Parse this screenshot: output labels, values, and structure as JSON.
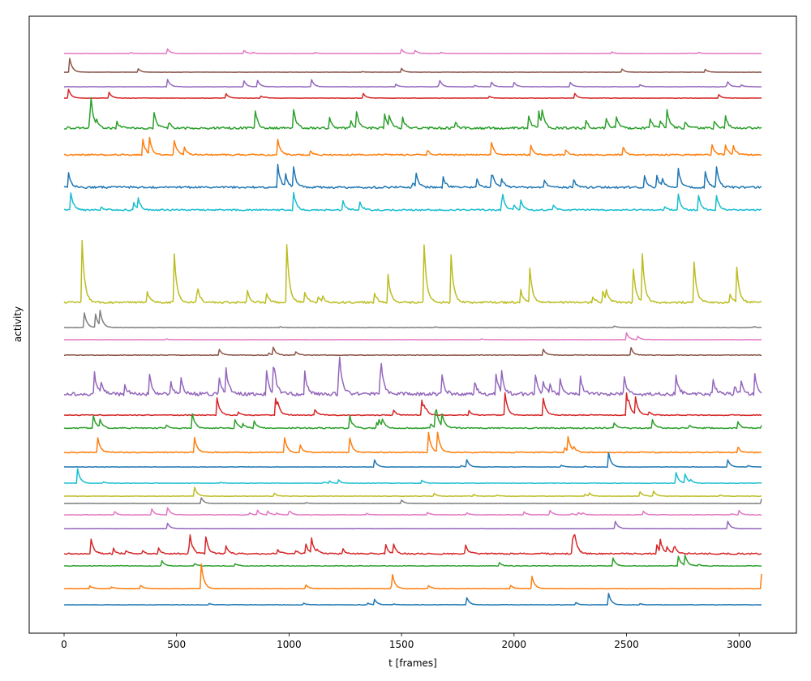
{
  "chart_data": {
    "type": "line",
    "xlabel": "t [frames]",
    "ylabel": "activity",
    "xlim": [
      -155,
      3255
    ],
    "n_frames": 3100,
    "x_ticks": [
      0,
      500,
      1000,
      1500,
      2000,
      2500,
      3000
    ],
    "y_ticks": [],
    "grid": false,
    "legend": "none",
    "traces": [
      {
        "color": "#e377c2",
        "amp": 0.35,
        "noise": 0.55,
        "spikes": [
          [
            460,
            2
          ],
          [
            800,
            1.3
          ],
          [
            1500,
            1.8
          ],
          [
            1560,
            1.4
          ]
        ]
      },
      {
        "color": "#8c564b",
        "amp": 0.35,
        "noise": 0.5,
        "spikes": [
          [
            25,
            6
          ],
          [
            330,
            1.5
          ],
          [
            1500,
            1.6
          ],
          [
            2480,
            1.4
          ],
          [
            2850,
            1.2
          ]
        ]
      },
      {
        "color": "#9467bd",
        "amp": 0.45,
        "noise": 0.7,
        "spikes": [
          [
            460,
            2.5
          ],
          [
            800,
            2
          ],
          [
            860,
            2.2
          ],
          [
            1100,
            2.4
          ],
          [
            1670,
            1.8
          ],
          [
            1900,
            1.5
          ],
          [
            2000,
            1.5
          ],
          [
            2250,
            1.5
          ],
          [
            2950,
            1.3
          ]
        ]
      },
      {
        "color": "#d62728",
        "amp": 0.45,
        "noise": 0.6,
        "spikes": [
          [
            20,
            3
          ],
          [
            200,
            2
          ],
          [
            720,
            1.5
          ],
          [
            1330,
            1.6
          ],
          [
            2270,
            1.6
          ],
          [
            2910,
            1.2
          ]
        ]
      },
      {
        "color": "#2ca02c",
        "amp": 0.9,
        "noise": 2.2,
        "spikes": [
          [
            120,
            3.5
          ],
          [
            400,
            2.8
          ],
          [
            850,
            3
          ],
          [
            1020,
            3.2
          ],
          [
            1300,
            2.8
          ],
          [
            2680,
            3
          ]
        ]
      },
      {
        "color": "#ff7f0e",
        "amp": 0.8,
        "noise": 1.6,
        "spikes": [
          [
            350,
            3
          ],
          [
            380,
            3
          ],
          [
            490,
            2.8
          ],
          [
            950,
            3
          ],
          [
            1900,
            2.5
          ],
          [
            2880,
            2
          ]
        ]
      },
      {
        "color": "#1f77b4",
        "amp": 0.85,
        "noise": 2.0,
        "spikes": [
          [
            20,
            2.5
          ],
          [
            950,
            4
          ],
          [
            1020,
            3.5
          ],
          [
            1900,
            2
          ],
          [
            2730,
            3.5
          ],
          [
            2850,
            3
          ],
          [
            2900,
            3.5
          ]
        ]
      },
      {
        "color": "#17becf",
        "amp": 0.8,
        "noise": 1.6,
        "spikes": [
          [
            30,
            2.5
          ],
          [
            330,
            2
          ],
          [
            1020,
            3.5
          ],
          [
            1950,
            1.8
          ],
          [
            2730,
            3
          ],
          [
            2820,
            2.8
          ],
          [
            2900,
            2.8
          ]
        ]
      },
      {
        "color": "#bcbd22",
        "amp": 1.05,
        "noise": 1.6,
        "spikes": [
          [
            80,
            9
          ],
          [
            490,
            7
          ],
          [
            990,
            8.5
          ],
          [
            1440,
            4
          ],
          [
            1600,
            8.5
          ],
          [
            1720,
            7
          ],
          [
            2070,
            5
          ],
          [
            2530,
            5
          ],
          [
            2570,
            7
          ],
          [
            2800,
            6
          ],
          [
            2990,
            5
          ]
        ]
      },
      {
        "color": "#7f7f7f",
        "amp": 0.45,
        "noise": 0.7,
        "spikes": [
          [
            90,
            5
          ],
          [
            140,
            4.5
          ],
          [
            160,
            5
          ]
        ]
      },
      {
        "color": "#e377c2",
        "amp": 0.35,
        "noise": 0.35,
        "spikes": [
          [
            2500,
            3
          ],
          [
            2550,
            1.5
          ]
        ]
      },
      {
        "color": "#8c564b",
        "amp": 0.45,
        "noise": 1.2,
        "spikes": [
          [
            690,
            2
          ],
          [
            930,
            2.5
          ],
          [
            2130,
            2
          ],
          [
            2520,
            2.5
          ]
        ]
      },
      {
        "color": "#9467bd",
        "amp": 0.95,
        "noise": 3.2,
        "spikes": [
          [
            720,
            4
          ],
          [
            930,
            4
          ],
          [
            1220,
            3.5
          ],
          [
            1680,
            3
          ],
          [
            2720,
            3
          ],
          [
            3070,
            3
          ]
        ]
      },
      {
        "color": "#d62728",
        "amp": 0.75,
        "noise": 1.0,
        "spikes": [
          [
            680,
            3.5
          ],
          [
            940,
            3.5
          ],
          [
            1590,
            3
          ],
          [
            1960,
            4.5
          ],
          [
            2130,
            3.5
          ],
          [
            2500,
            4.5
          ],
          [
            2540,
            3.5
          ]
        ]
      },
      {
        "color": "#2ca02c",
        "amp": 0.75,
        "noise": 1.4,
        "spikes": [
          [
            130,
            2.5
          ],
          [
            570,
            3
          ],
          [
            1270,
            2.5
          ],
          [
            1650,
            3
          ],
          [
            1680,
            2.5
          ]
        ]
      },
      {
        "color": "#ff7f0e",
        "amp": 0.75,
        "noise": 1.2,
        "spikes": [
          [
            150,
            3
          ],
          [
            580,
            3
          ],
          [
            980,
            3
          ],
          [
            1270,
            3
          ],
          [
            1620,
            4
          ],
          [
            1660,
            4
          ],
          [
            2240,
            3
          ]
        ]
      },
      {
        "color": "#1f77b4",
        "amp": 0.55,
        "noise": 0.5,
        "spikes": [
          [
            1380,
            2
          ],
          [
            1790,
            2
          ],
          [
            2420,
            4
          ],
          [
            2950,
            2
          ]
        ]
      },
      {
        "color": "#17becf",
        "amp": 0.55,
        "noise": 0.8,
        "spikes": [
          [
            60,
            4
          ],
          [
            2720,
            3
          ],
          [
            2760,
            2.5
          ]
        ]
      },
      {
        "color": "#bcbd22",
        "amp": 0.45,
        "noise": 0.8,
        "spikes": [
          [
            580,
            3
          ],
          [
            2560,
            1.5
          ],
          [
            2620,
            1.8
          ]
        ]
      },
      {
        "color": "#7f7f7f",
        "amp": 0.35,
        "noise": 0.5,
        "spikes": [
          [
            610,
            2.5
          ],
          [
            1500,
            1.5
          ],
          [
            3100,
            2
          ]
        ]
      },
      {
        "color": "#e377c2",
        "amp": 0.45,
        "noise": 1.0,
        "spikes": [
          [
            390,
            2
          ],
          [
            460,
            2.5
          ],
          [
            860,
            1.5
          ],
          [
            2160,
            1.5
          ],
          [
            3000,
            1.5
          ]
        ]
      },
      {
        "color": "#9467bd",
        "amp": 0.45,
        "noise": 0.6,
        "spikes": [
          [
            460,
            1.8
          ],
          [
            2450,
            2.5
          ],
          [
            2950,
            2.5
          ]
        ]
      },
      {
        "color": "#d62728",
        "amp": 0.75,
        "noise": 1.6,
        "spikes": [
          [
            120,
            3
          ],
          [
            560,
            3
          ],
          [
            630,
            3.5
          ],
          [
            1100,
            3
          ],
          [
            2260,
            3
          ],
          [
            2650,
            2.5
          ]
        ]
      },
      {
        "color": "#2ca02c",
        "amp": 0.6,
        "noise": 1.0,
        "spikes": [
          [
            2440,
            2
          ],
          [
            2730,
            2.5
          ],
          [
            2760,
            2.5
          ]
        ]
      },
      {
        "color": "#ff7f0e",
        "amp": 0.75,
        "noise": 0.6,
        "spikes": [
          [
            610,
            5
          ],
          [
            1460,
            2.5
          ],
          [
            2080,
            2.5
          ],
          [
            3100,
            3
          ]
        ]
      },
      {
        "color": "#1f77b4",
        "amp": 0.55,
        "noise": 0.55,
        "spikes": [
          [
            1380,
            1.5
          ],
          [
            1790,
            2
          ],
          [
            2420,
            3.2
          ]
        ]
      }
    ]
  }
}
